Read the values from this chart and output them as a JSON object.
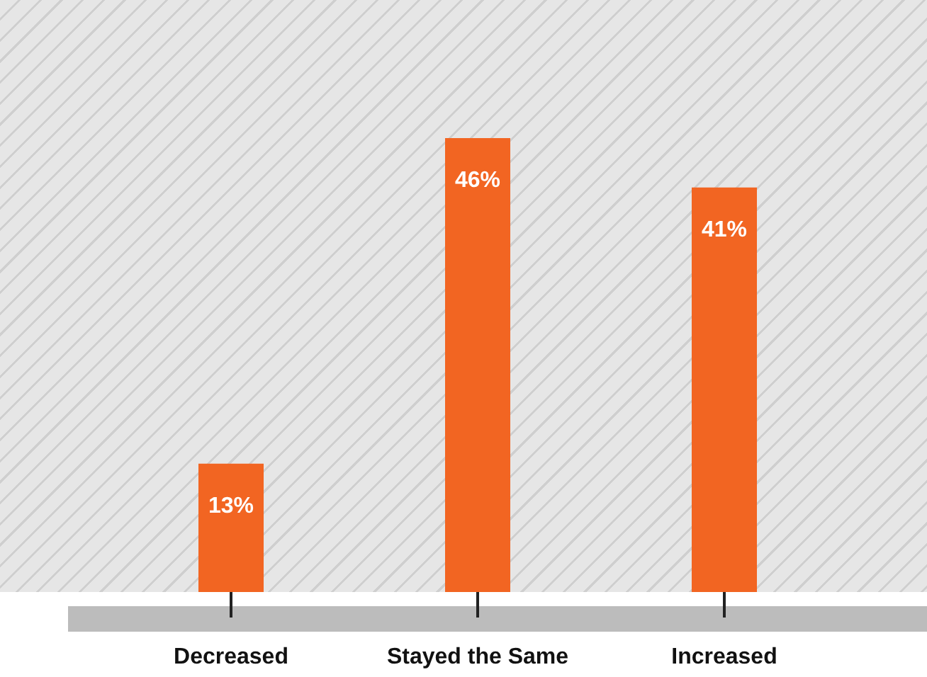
{
  "chart_data": {
    "type": "bar",
    "categories": [
      "Decreased",
      "Stayed the Same",
      "Increased"
    ],
    "values": [
      13,
      46,
      41
    ],
    "value_labels": [
      "13%",
      "46%",
      "41%"
    ],
    "color": "#f26522",
    "ylim": [
      0,
      60
    ],
    "tick_labels": "x"
  }
}
